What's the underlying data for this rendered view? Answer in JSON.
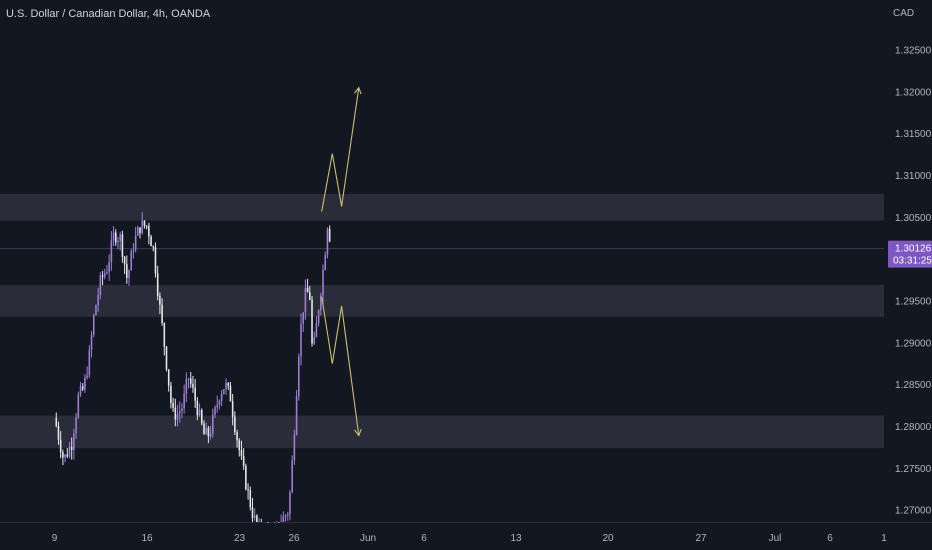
{
  "header": {
    "title": "U.S. Dollar / Canadian Dollar, 4h, OANDA"
  },
  "axis": {
    "currency": "CAD"
  },
  "price_tag": {
    "value": "1.30126",
    "countdown": "03:31:25"
  },
  "colors": {
    "background": "#131722",
    "up_candle": "#9b7fd1",
    "down_candle": "#e6e6e9",
    "zone": "#2a2d39",
    "projection": "#c8c070",
    "price_tag": "#7e57c2",
    "axis_text": "#b2b5be"
  },
  "chart_data": {
    "type": "candlestick",
    "title": "U.S. Dollar / Canadian Dollar, 4h, OANDA",
    "y_axis": {
      "side": "right",
      "label": "CAD",
      "ticks": [
        "1.32500",
        "1.32000",
        "1.31500",
        "1.31000",
        "1.30500",
        "1.30126",
        "1.29500",
        "1.29000",
        "1.28500",
        "1.28000",
        "1.27500",
        "1.27000"
      ],
      "range": [
        1.2675,
        1.3305
      ]
    },
    "x_axis": {
      "ticks": [
        "9",
        "16",
        "23",
        "26",
        "Jun",
        "6",
        "13",
        "20",
        "27",
        "Jul",
        "6",
        "1"
      ]
    },
    "current_price": 1.30126,
    "zones": [
      {
        "low": 1.3046,
        "high": 1.3078
      },
      {
        "low": 1.2931,
        "high": 1.2969
      },
      {
        "low": 1.2774,
        "high": 1.2813
      }
    ],
    "projection_up": [
      [
        1.3057,
        20.2
      ],
      [
        1.3126,
        21.0
      ],
      [
        1.3063,
        21.7
      ],
      [
        1.3205,
        23.0
      ]
    ],
    "projection_down": [
      [
        1.2955,
        20.2
      ],
      [
        1.2875,
        21.0
      ],
      [
        1.2944,
        21.7
      ],
      [
        1.2789,
        23.0
      ]
    ],
    "waypoints": [
      [
        0.0,
        1.281
      ],
      [
        0.7,
        1.276
      ],
      [
        1.3,
        1.278
      ],
      [
        1.8,
        1.2835
      ],
      [
        2.2,
        1.2845
      ],
      [
        2.6,
        1.288
      ],
      [
        3.0,
        1.2935
      ],
      [
        3.5,
        1.2975
      ],
      [
        4.0,
        1.299
      ],
      [
        4.5,
        1.303
      ],
      [
        5.0,
        1.3025
      ],
      [
        5.5,
        1.2975
      ],
      [
        6.0,
        1.302
      ],
      [
        6.5,
        1.304
      ],
      [
        7.0,
        1.304
      ],
      [
        7.5,
        1.301
      ],
      [
        7.9,
        1.295
      ],
      [
        8.4,
        1.2885
      ],
      [
        8.9,
        1.2815
      ],
      [
        9.3,
        1.2815
      ],
      [
        9.7,
        1.2825
      ],
      [
        10.1,
        1.286
      ],
      [
        10.5,
        1.284
      ],
      [
        10.9,
        1.2815
      ],
      [
        11.3,
        1.279
      ],
      [
        11.7,
        1.279
      ],
      [
        12.1,
        1.2815
      ],
      [
        12.5,
        1.284
      ],
      [
        12.9,
        1.285
      ],
      [
        13.3,
        1.2835
      ],
      [
        13.7,
        1.2795
      ],
      [
        14.1,
        1.276
      ],
      [
        14.5,
        1.273
      ],
      [
        14.9,
        1.27
      ],
      [
        15.4,
        1.2675
      ],
      [
        16.0,
        1.2672
      ],
      [
        16.6,
        1.267
      ],
      [
        17.1,
        1.2685
      ],
      [
        17.7,
        1.27
      ],
      [
        17.9,
        1.274
      ],
      [
        18.1,
        1.279
      ],
      [
        18.3,
        1.2845
      ],
      [
        18.5,
        1.29
      ],
      [
        18.7,
        1.293
      ],
      [
        18.9,
        1.2955
      ],
      [
        19.1,
        1.296
      ],
      [
        19.3,
        1.2955
      ],
      [
        19.5,
        1.2885
      ],
      [
        19.7,
        1.2905
      ],
      [
        19.9,
        1.2935
      ],
      [
        20.1,
        1.296
      ],
      [
        20.4,
        1.3
      ],
      [
        20.7,
        1.3055
      ],
      [
        20.85,
        1.3015
      ],
      [
        20.95,
        1.3012
      ]
    ]
  }
}
